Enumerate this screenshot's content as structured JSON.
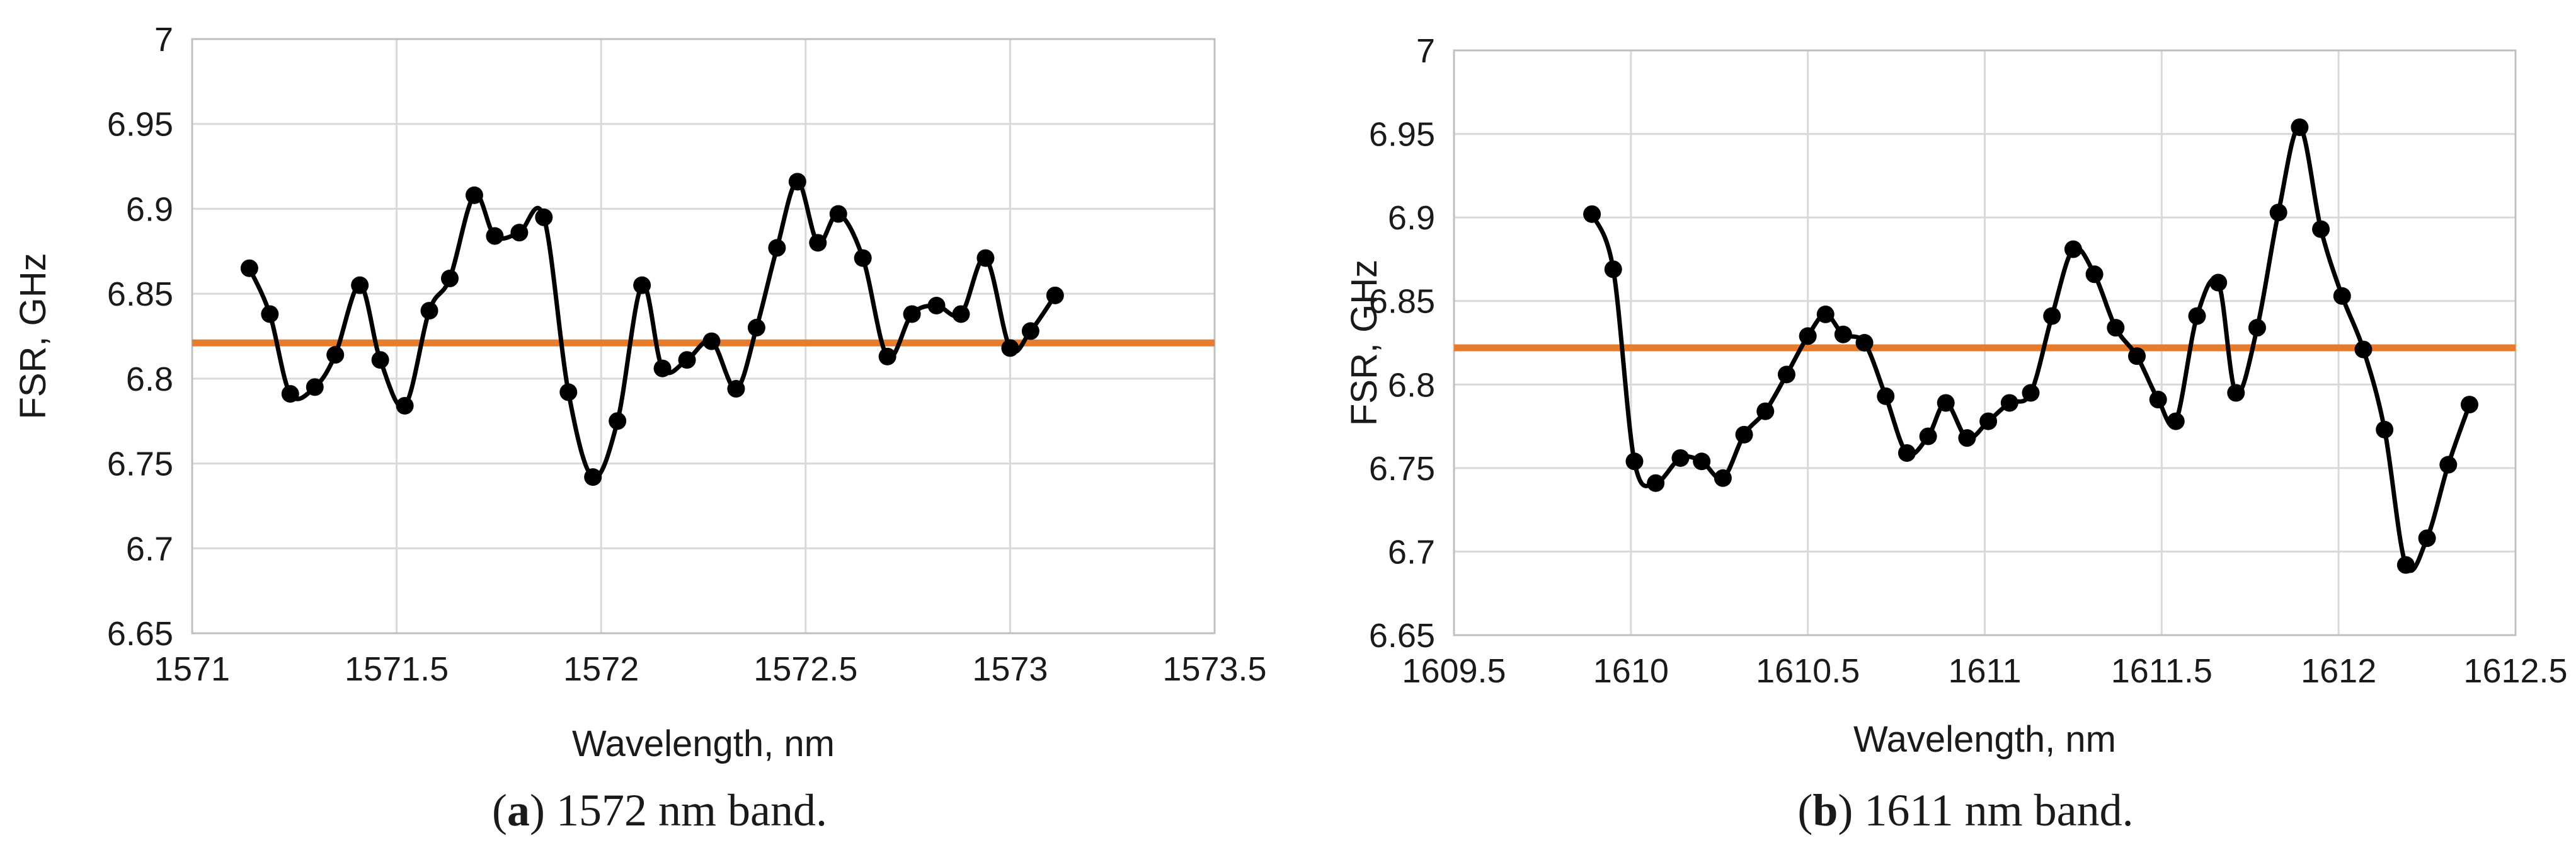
{
  "colors": {
    "series": "#000000",
    "reference_line": "#e87c2e",
    "grid": "#d9d9d9",
    "frame": "#bfbfbf"
  },
  "chart_data": [
    {
      "type": "line",
      "xlabel": "Wavelength, nm",
      "ylabel": "FSR, GHz",
      "xlim": [
        1571,
        1573.5
      ],
      "ylim": [
        6.65,
        7
      ],
      "x_ticks": [
        "1571",
        "1571.5",
        "1572",
        "1572.5",
        "1573",
        "1573.5"
      ],
      "y_ticks": [
        "6.65",
        "6.7",
        "6.75",
        "6.8",
        "6.85",
        "6.9",
        "6.95",
        "7"
      ],
      "grid": true,
      "caption": {
        "open": "(",
        "letter": "a",
        "text": ") 1572 nm band."
      },
      "reference_line_y": 6.821,
      "series": [
        {
          "x": [
            1571.14,
            1571.19,
            1571.24,
            1571.3,
            1571.35,
            1571.41,
            1571.46,
            1571.52,
            1571.58,
            1571.63,
            1571.69,
            1571.74,
            1571.8,
            1571.86,
            1571.92,
            1571.98,
            1572.04,
            1572.1,
            1572.15,
            1572.21,
            1572.27,
            1572.33,
            1572.38,
            1572.43,
            1572.48,
            1572.53,
            1572.58,
            1572.64,
            1572.7,
            1572.76,
            1572.82,
            1572.88,
            1572.94,
            1573.0,
            1573.05,
            1573.11
          ],
          "y": [
            6.865,
            6.838,
            6.791,
            6.795,
            6.814,
            6.855,
            6.811,
            6.784,
            6.84,
            6.859,
            6.908,
            6.884,
            6.886,
            6.895,
            6.792,
            6.742,
            6.775,
            6.855,
            6.806,
            6.811,
            6.822,
            6.794,
            6.83,
            6.877,
            6.916,
            6.88,
            6.897,
            6.871,
            6.813,
            6.838,
            6.843,
            6.838,
            6.871,
            6.818,
            6.828,
            6.849
          ]
        }
      ]
    },
    {
      "type": "line",
      "xlabel": "Wavelength, nm",
      "ylabel": "FSR, GHz",
      "xlim": [
        1609.5,
        1612.5
      ],
      "ylim": [
        6.65,
        7
      ],
      "x_ticks": [
        "1609.5",
        "1610",
        "1610.5",
        "1611",
        "1611.5",
        "1612",
        "1612.5"
      ],
      "y_ticks": [
        "6.65",
        "6.7",
        "6.75",
        "6.8",
        "6.85",
        "6.9",
        "6.95",
        "7"
      ],
      "grid": true,
      "caption": {
        "open": "(",
        "letter": "b",
        "text": ") 1611 nm band."
      },
      "reference_line_y": 6.822,
      "series": [
        {
          "x": [
            1609.89,
            1609.95,
            1610.01,
            1610.07,
            1610.14,
            1610.2,
            1610.26,
            1610.32,
            1610.38,
            1610.44,
            1610.5,
            1610.55,
            1610.6,
            1610.66,
            1610.72,
            1610.78,
            1610.84,
            1610.89,
            1610.95,
            1611.01,
            1611.07,
            1611.13,
            1611.19,
            1611.25,
            1611.31,
            1611.37,
            1611.43,
            1611.49,
            1611.54,
            1611.6,
            1611.66,
            1611.71,
            1611.77,
            1611.83,
            1611.89,
            1611.95,
            1612.01,
            1612.07,
            1612.13,
            1612.19,
            1612.25,
            1612.31,
            1612.37
          ],
          "y": [
            6.902,
            6.869,
            6.754,
            6.741,
            6.756,
            6.754,
            6.744,
            6.77,
            6.784,
            6.806,
            6.829,
            6.842,
            6.83,
            6.825,
            6.793,
            6.759,
            6.769,
            6.789,
            6.768,
            6.778,
            6.789,
            6.795,
            6.841,
            6.881,
            6.866,
            6.834,
            6.817,
            6.791,
            6.778,
            6.841,
            6.861,
            6.795,
            6.834,
            6.903,
            6.954,
            6.893,
            6.853,
            6.821,
            6.773,
            6.692,
            6.708,
            6.752,
            6.788
          ]
        }
      ]
    }
  ]
}
